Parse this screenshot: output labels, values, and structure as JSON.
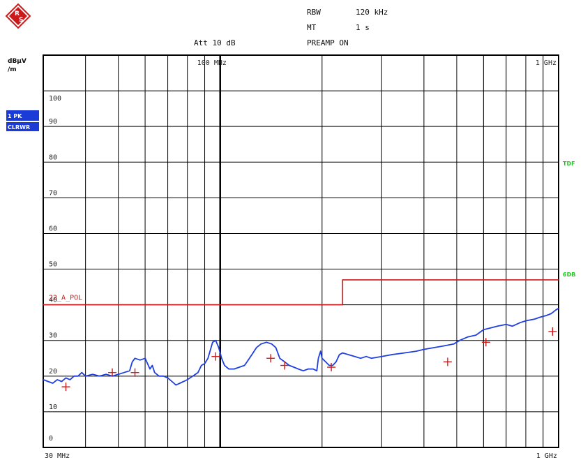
{
  "header": {
    "rbw_label": "RBW",
    "rbw_value": "120 kHz",
    "mt_label": "MT",
    "mt_value": "1 s",
    "att": "Att 10 dB",
    "preamp": "PREAMP ON"
  },
  "trace_badges": {
    "trace": "1 PK",
    "mode": "CLRWR"
  },
  "colors": {
    "trace": "#1f3fe0",
    "limit": "#cc1a1a",
    "markers": "#cc1a1a",
    "badge_bg": "#1a3bd6",
    "side_label": "#22c422",
    "grid": "#000000",
    "logo": "#cc1a1a"
  },
  "chart_data": {
    "type": "line",
    "ylabel": "dBµV /m",
    "xscale": "log",
    "xlim_mhz": [
      30,
      1000
    ],
    "ylim": [
      0,
      110
    ],
    "y_ticks": [
      0,
      10,
      20,
      30,
      40,
      50,
      60,
      70,
      80,
      90,
      100
    ],
    "x_tick_labels": {
      "start": "30 MHz",
      "end": "1 GHz",
      "top_mid": "100 MHz",
      "top_end": "1 GHz"
    },
    "x_gridlines_mhz": [
      40,
      50,
      60,
      70,
      80,
      90,
      100,
      200,
      300,
      400,
      500,
      600,
      700,
      800,
      900
    ],
    "limit_lines": [
      {
        "label": "22_A_POL",
        "points_mhz_db": [
          [
            30,
            40
          ],
          [
            230,
            40
          ],
          [
            230,
            47
          ],
          [
            1000,
            47
          ]
        ]
      }
    ],
    "side_labels": [
      "TDF",
      "6DB"
    ],
    "series": [
      {
        "values_mhz_db": [
          [
            30,
            19
          ],
          [
            31,
            18.5
          ],
          [
            32,
            18
          ],
          [
            33,
            19
          ],
          [
            34,
            18.5
          ],
          [
            35,
            19.5
          ],
          [
            36,
            19
          ],
          [
            37,
            20
          ],
          [
            38,
            20
          ],
          [
            39,
            21
          ],
          [
            40,
            20
          ],
          [
            42,
            20.5
          ],
          [
            44,
            20
          ],
          [
            46,
            20.5
          ],
          [
            48,
            20
          ],
          [
            50,
            20.5
          ],
          [
            52,
            21
          ],
          [
            54,
            21.5
          ],
          [
            55,
            24
          ],
          [
            56,
            25
          ],
          [
            58,
            24.5
          ],
          [
            60,
            25
          ],
          [
            62,
            22
          ],
          [
            63,
            23
          ],
          [
            64,
            21
          ],
          [
            66,
            20
          ],
          [
            68,
            20
          ],
          [
            70,
            19.5
          ],
          [
            72,
            18.5
          ],
          [
            74,
            17.5
          ],
          [
            76,
            18
          ],
          [
            78,
            18.5
          ],
          [
            80,
            19
          ],
          [
            83,
            20
          ],
          [
            86,
            21
          ],
          [
            88,
            23
          ],
          [
            90,
            23.5
          ],
          [
            92,
            25
          ],
          [
            95,
            29.5
          ],
          [
            97,
            30
          ],
          [
            99,
            28
          ],
          [
            101,
            25
          ],
          [
            103,
            23
          ],
          [
            106,
            22
          ],
          [
            110,
            22
          ],
          [
            114,
            22.5
          ],
          [
            118,
            23
          ],
          [
            120,
            24
          ],
          [
            124,
            26
          ],
          [
            128,
            28
          ],
          [
            132,
            29
          ],
          [
            137,
            29.5
          ],
          [
            142,
            29
          ],
          [
            146,
            28
          ],
          [
            150,
            25
          ],
          [
            155,
            24
          ],
          [
            160,
            23
          ],
          [
            165,
            22.5
          ],
          [
            170,
            22
          ],
          [
            176,
            21.5
          ],
          [
            182,
            22
          ],
          [
            188,
            22
          ],
          [
            193,
            21.5
          ],
          [
            195,
            25
          ],
          [
            198,
            27
          ],
          [
            200,
            25
          ],
          [
            205,
            24
          ],
          [
            210,
            23
          ],
          [
            215,
            23
          ],
          [
            220,
            24
          ],
          [
            225,
            26
          ],
          [
            230,
            26.5
          ],
          [
            240,
            26
          ],
          [
            250,
            25.5
          ],
          [
            260,
            25
          ],
          [
            270,
            25.5
          ],
          [
            280,
            25
          ],
          [
            300,
            25.5
          ],
          [
            320,
            26
          ],
          [
            350,
            26.5
          ],
          [
            380,
            27
          ],
          [
            400,
            27.5
          ],
          [
            430,
            28
          ],
          [
            460,
            28.5
          ],
          [
            490,
            29
          ],
          [
            510,
            30
          ],
          [
            540,
            31
          ],
          [
            570,
            31.5
          ],
          [
            600,
            33
          ],
          [
            630,
            33.5
          ],
          [
            660,
            34
          ],
          [
            700,
            34.5
          ],
          [
            730,
            34
          ],
          [
            770,
            35
          ],
          [
            800,
            35.5
          ],
          [
            850,
            36
          ],
          [
            880,
            36.5
          ],
          [
            920,
            37
          ],
          [
            950,
            37.5
          ],
          [
            980,
            38.5
          ],
          [
            1000,
            39
          ]
        ]
      }
    ],
    "markers_mhz_db": [
      [
        35,
        17
      ],
      [
        48,
        21
      ],
      [
        56,
        21
      ],
      [
        97,
        25.5
      ],
      [
        141,
        25
      ],
      [
        155,
        23
      ],
      [
        213,
        22.5
      ],
      [
        470,
        24
      ],
      [
        610,
        29.5
      ],
      [
        960,
        32.5
      ]
    ]
  }
}
